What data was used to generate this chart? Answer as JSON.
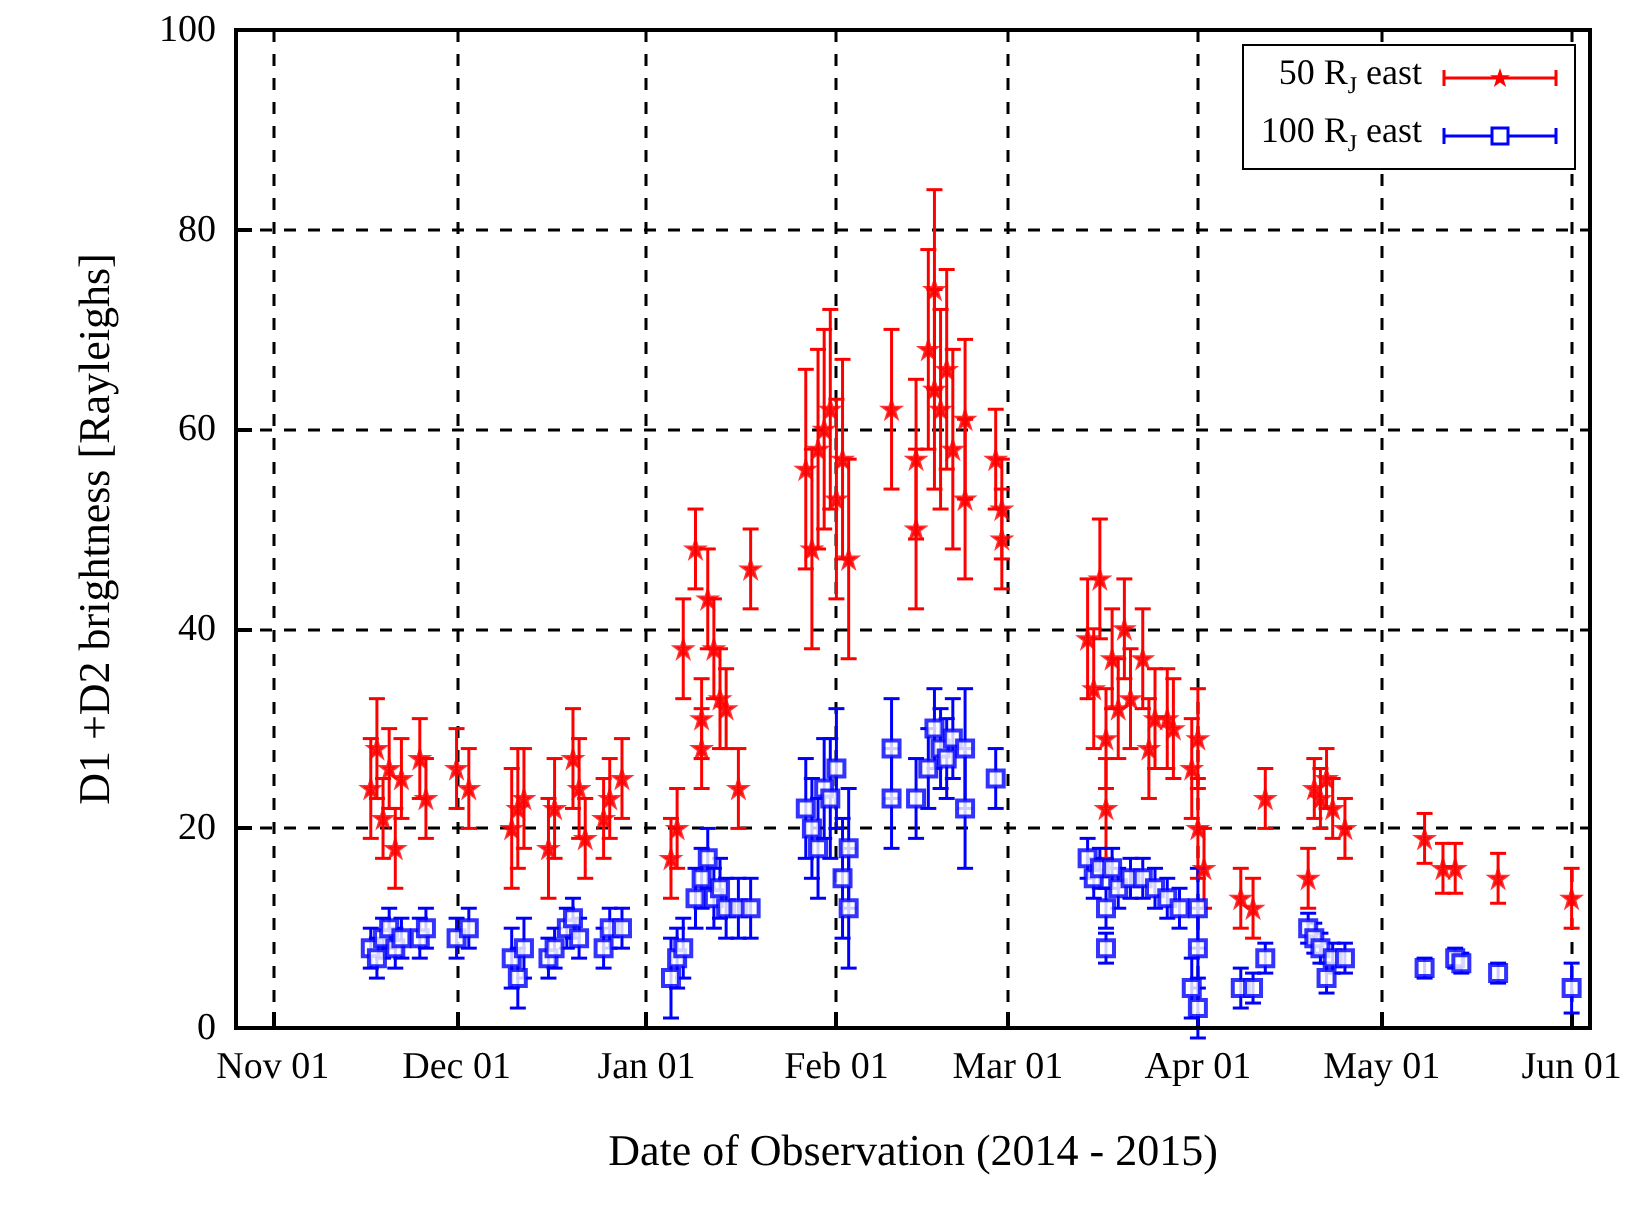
{
  "chart_data": {
    "type": "scatter",
    "xlabel": "Date of Observation (2014 - 2015)",
    "ylabel": "D1 +D2 brightness [Rayleighs]",
    "xlim": [
      "2014-10-26",
      "2015-06-04"
    ],
    "xticks": [
      {
        "value": "2014-11-01",
        "label": "Nov 01"
      },
      {
        "value": "2014-12-01",
        "label": "Dec 01"
      },
      {
        "value": "2015-01-01",
        "label": "Jan 01"
      },
      {
        "value": "2015-02-01",
        "label": "Feb 01"
      },
      {
        "value": "2015-03-01",
        "label": "Mar 01"
      },
      {
        "value": "2015-04-01",
        "label": "Apr 01"
      },
      {
        "value": "2015-05-01",
        "label": "May 01"
      },
      {
        "value": "2015-06-01",
        "label": "Jun 01"
      }
    ],
    "ylim": [
      0,
      100
    ],
    "yticks": [
      0,
      20,
      40,
      60,
      80,
      100
    ],
    "grid": true,
    "legend": "top right",
    "series": [
      {
        "name": "50 R$_{J}$ east",
        "color": "#ff0000",
        "marker": "star",
        "x": [
          "2014-11-17",
          "2014-11-18",
          "2014-11-19",
          "2014-11-20",
          "2014-11-21",
          "2014-11-22",
          "2014-11-25",
          "2014-11-26",
          "2014-12-01",
          "2014-12-03",
          "2014-12-10",
          "2014-12-11",
          "2014-12-12",
          "2014-12-16",
          "2014-12-17",
          "2014-12-20",
          "2014-12-21",
          "2014-12-22",
          "2014-12-25",
          "2014-12-26",
          "2014-12-28",
          "2015-01-05",
          "2015-01-06",
          "2015-01-07",
          "2015-01-09",
          "2015-01-10",
          "2015-01-10",
          "2015-01-11",
          "2015-01-12",
          "2015-01-13",
          "2015-01-14",
          "2015-01-16",
          "2015-01-18",
          "2015-01-27",
          "2015-01-28",
          "2015-01-29",
          "2015-01-30",
          "2015-01-31",
          "2015-02-01",
          "2015-02-02",
          "2015-02-03",
          "2015-02-10",
          "2015-02-14",
          "2015-02-14",
          "2015-02-16",
          "2015-02-17",
          "2015-02-17",
          "2015-02-18",
          "2015-02-19",
          "2015-02-20",
          "2015-02-22",
          "2015-02-22",
          "2015-02-27",
          "2015-02-28",
          "2015-02-28",
          "2015-03-14",
          "2015-03-15",
          "2015-03-16",
          "2015-03-17",
          "2015-03-17",
          "2015-03-18",
          "2015-03-19",
          "2015-03-20",
          "2015-03-21",
          "2015-03-23",
          "2015-03-24",
          "2015-03-25",
          "2015-03-27",
          "2015-03-28",
          "2015-03-31",
          "2015-04-01",
          "2015-04-01",
          "2015-04-02",
          "2015-04-08",
          "2015-04-10",
          "2015-04-12",
          "2015-04-19",
          "2015-04-20",
          "2015-04-21",
          "2015-04-22",
          "2015-04-23",
          "2015-04-25",
          "2015-05-08",
          "2015-05-11",
          "2015-05-13",
          "2015-05-20",
          "2015-06-01"
        ],
        "values": [
          24,
          28,
          21,
          26,
          18,
          25,
          27,
          23,
          26,
          24,
          20,
          22,
          23,
          18,
          22,
          27,
          24,
          19,
          21,
          23,
          25,
          17,
          20,
          38,
          48,
          28,
          31,
          43,
          38,
          33,
          32,
          24,
          46,
          56,
          48,
          58,
          60,
          62,
          53,
          57,
          47,
          62,
          57,
          50,
          68,
          74,
          64,
          62,
          66,
          58,
          61,
          53,
          57,
          52,
          49,
          39,
          34,
          45,
          29,
          22,
          37,
          32,
          40,
          33,
          37,
          28,
          31,
          31,
          30,
          26,
          20,
          29,
          16,
          13,
          12,
          23,
          15,
          24,
          23,
          25,
          22,
          20,
          19,
          16,
          16,
          15,
          13
        ],
        "errors": [
          5,
          5,
          4,
          4,
          4,
          4,
          4,
          4,
          4,
          4,
          6,
          6,
          5,
          5,
          5,
          5,
          5,
          4,
          4,
          4,
          4,
          4,
          4,
          5,
          4,
          4,
          4,
          5,
          5,
          5,
          4,
          4,
          4,
          10,
          10,
          10,
          10,
          10,
          10,
          10,
          10,
          8,
          8,
          8,
          10,
          10,
          10,
          10,
          10,
          10,
          8,
          8,
          5,
          5,
          5,
          6,
          6,
          6,
          5,
          5,
          5,
          5,
          5,
          5,
          5,
          5,
          5,
          5,
          5,
          5,
          5,
          5,
          4,
          3,
          3,
          3,
          3,
          3,
          3,
          3,
          3,
          3,
          2.5,
          2.5,
          2.5,
          2.5,
          3
        ]
      },
      {
        "name": "100 R$_{J}$ east",
        "color": "#0000ff",
        "marker": "square",
        "x": [
          "2014-11-17",
          "2014-11-18",
          "2014-11-19",
          "2014-11-20",
          "2014-11-21",
          "2014-11-22",
          "2014-11-25",
          "2014-11-26",
          "2014-12-01",
          "2014-12-03",
          "2014-12-10",
          "2014-12-11",
          "2014-12-12",
          "2014-12-16",
          "2014-12-17",
          "2014-12-19",
          "2014-12-20",
          "2014-12-21",
          "2014-12-25",
          "2014-12-26",
          "2014-12-28",
          "2015-01-05",
          "2015-01-06",
          "2015-01-07",
          "2015-01-09",
          "2015-01-10",
          "2015-01-11",
          "2015-01-12",
          "2015-01-13",
          "2015-01-14",
          "2015-01-16",
          "2015-01-18",
          "2015-01-27",
          "2015-01-28",
          "2015-01-29",
          "2015-01-30",
          "2015-01-31",
          "2015-02-01",
          "2015-02-02",
          "2015-02-03",
          "2015-02-03",
          "2015-02-10",
          "2015-02-10",
          "2015-02-14",
          "2015-02-16",
          "2015-02-17",
          "2015-02-18",
          "2015-02-19",
          "2015-02-20",
          "2015-02-22",
          "2015-02-22",
          "2015-02-27",
          "2015-03-14",
          "2015-03-15",
          "2015-03-16",
          "2015-03-17",
          "2015-03-17",
          "2015-03-18",
          "2015-03-19",
          "2015-03-21",
          "2015-03-23",
          "2015-03-25",
          "2015-03-27",
          "2015-03-29",
          "2015-03-31",
          "2015-04-01",
          "2015-04-01",
          "2015-04-01",
          "2015-04-08",
          "2015-04-10",
          "2015-04-12",
          "2015-04-19",
          "2015-04-20",
          "2015-04-21",
          "2015-04-22",
          "2015-04-23",
          "2015-04-25",
          "2015-05-08",
          "2015-05-13",
          "2015-05-14",
          "2015-05-20",
          "2015-06-01"
        ],
        "values": [
          8,
          7,
          9,
          10,
          8,
          9,
          9,
          10,
          9,
          10,
          7,
          5,
          8,
          7,
          8,
          10,
          11,
          9,
          8,
          10,
          10,
          5,
          7,
          8,
          13,
          15,
          17,
          13,
          14,
          12,
          12,
          12,
          22,
          20,
          18,
          24,
          23,
          26,
          15,
          18,
          12,
          28,
          23,
          23,
          26,
          30,
          28,
          27,
          29,
          28,
          22,
          25,
          17,
          15,
          16,
          12,
          8,
          16,
          14,
          15,
          15,
          14,
          13,
          12,
          4,
          2,
          8,
          12,
          4,
          4,
          7,
          10,
          9,
          8,
          5,
          7,
          7,
          6,
          7,
          6.5,
          5.5,
          4
        ],
        "errors": [
          2,
          2,
          2,
          2,
          2,
          2,
          2,
          2,
          2,
          2,
          3,
          3,
          3,
          2,
          2,
          2,
          2,
          2,
          2,
          2,
          2,
          4,
          3,
          3,
          3,
          3,
          3,
          3,
          3,
          3,
          3,
          3,
          5,
          5,
          5,
          5,
          6,
          6,
          6,
          6,
          6,
          5,
          5,
          4,
          4,
          4,
          4,
          4,
          4,
          6,
          6,
          3,
          2,
          2,
          2,
          2,
          1.5,
          2,
          2,
          2,
          2,
          2,
          2,
          2,
          3,
          3,
          4,
          4,
          2,
          1.5,
          1.5,
          1.5,
          1.5,
          1.5,
          1.5,
          1.5,
          1.5,
          1,
          1,
          1,
          1,
          2.5
        ]
      }
    ]
  }
}
